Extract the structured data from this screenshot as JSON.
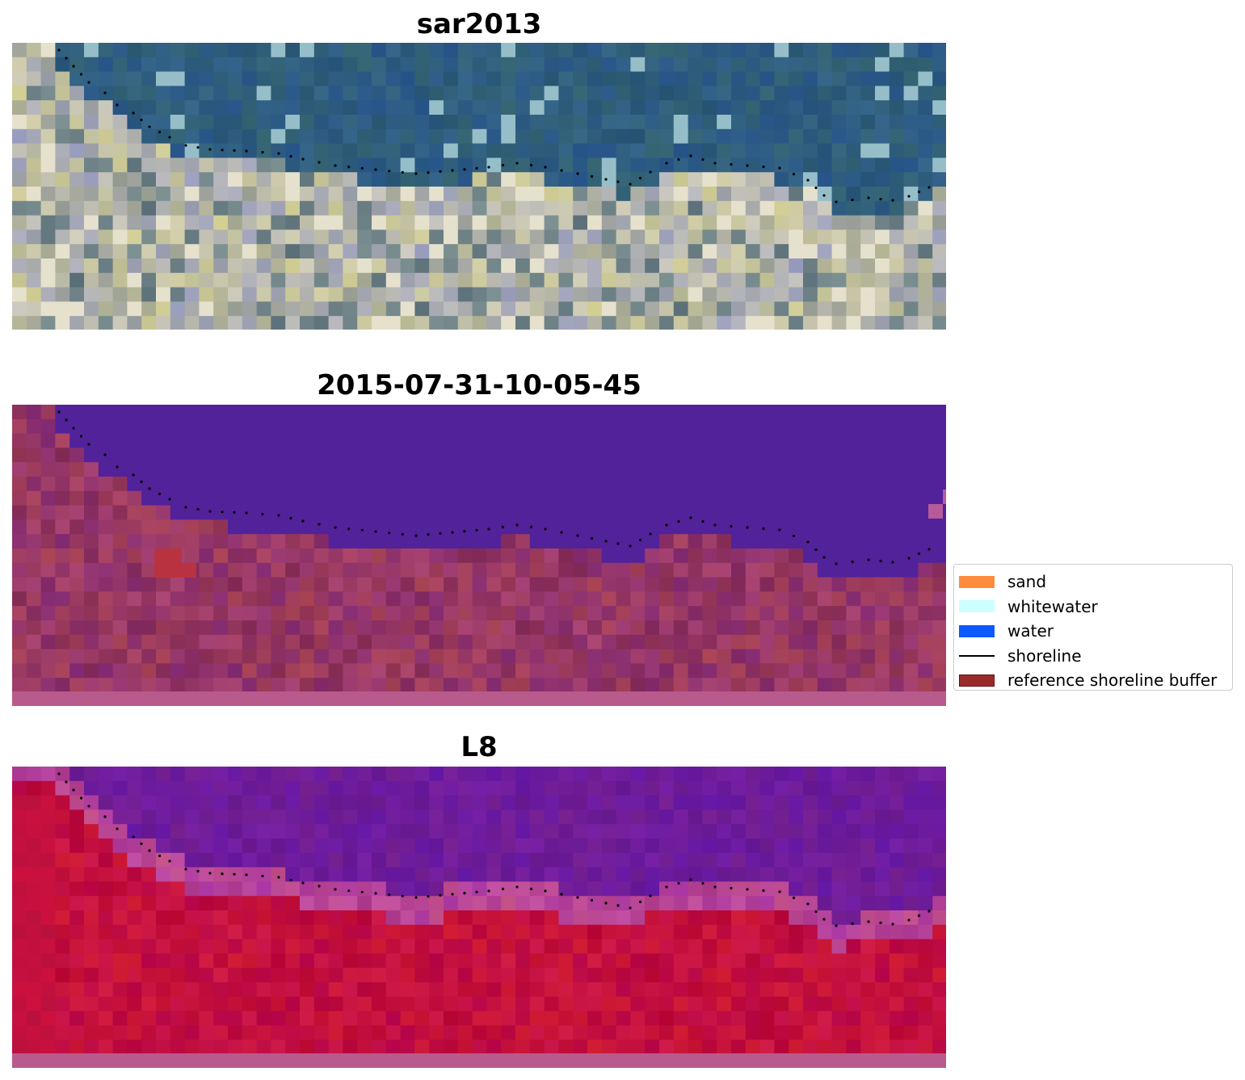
{
  "panels": [
    {
      "title": "sar2013",
      "style": "rgb"
    },
    {
      "title": "2015-07-31-10-05-45",
      "style": "classified"
    },
    {
      "title": "L8",
      "style": "index"
    }
  ],
  "legend": {
    "position": "center-right",
    "items": [
      {
        "label": "sand",
        "kind": "patch",
        "color": "#ff8c3c"
      },
      {
        "label": "whitewater",
        "kind": "patch",
        "color": "#ccffff"
      },
      {
        "label": "water",
        "kind": "patch",
        "color": "#0a5aff"
      },
      {
        "label": "shoreline",
        "kind": "line",
        "color": "#000000"
      },
      {
        "label": "reference shoreline buffer",
        "kind": "patch",
        "color": "#9a2a2a"
      }
    ]
  },
  "chart_data": {
    "type": "heatmap",
    "grid": false,
    "axes": "off",
    "shoreline_color": "#000000",
    "colors": {
      "water_class": "#52229a",
      "land_index": "#c3103e",
      "water_index": "#6e1c9a",
      "sea_rgb": "#2f5e7e",
      "land_rgb": "#b8b8ae"
    }
  }
}
